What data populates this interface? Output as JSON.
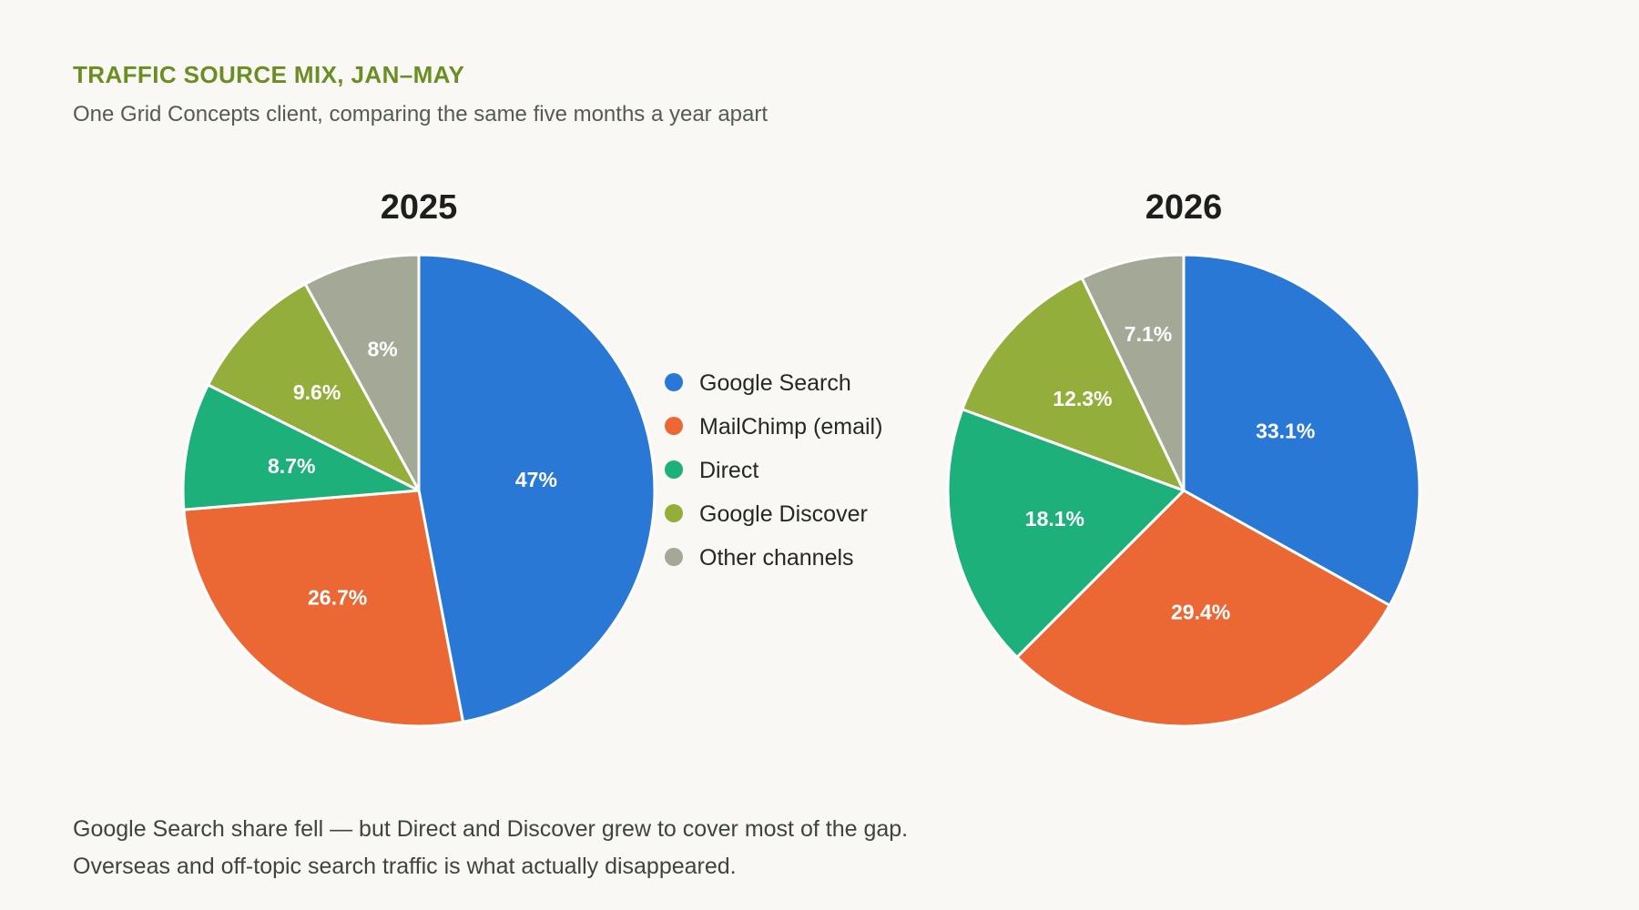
{
  "header": {
    "kicker": "TRAFFIC SOURCE MIX, JAN–MAY",
    "subtitle": "One Grid Concepts client, comparing the same five months a year apart"
  },
  "footnote": "Google Search share fell — but Direct and Discover grew to cover most of the gap. Overseas and off-topic search traffic is what actually disappeared.",
  "chart_data": [
    {
      "type": "pie",
      "title": "2025",
      "categories": [
        "Google Search",
        "MailChimp (email)",
        "Direct",
        "Google Discover",
        "Other channels"
      ],
      "values": [
        47,
        26.7,
        8.7,
        9.6,
        8
      ],
      "labels": [
        "47%",
        "26.7%",
        "8.7%",
        "9.6%",
        "8%"
      ],
      "colors": [
        "#2a78d6",
        "#eb6834",
        "#1db07b",
        "#93ae3a",
        "#a4a896"
      ],
      "legend": "between charts"
    },
    {
      "type": "pie",
      "title": "2026",
      "categories": [
        "Google Search",
        "MailChimp (email)",
        "Direct",
        "Google Discover",
        "Other channels"
      ],
      "values": [
        33.1,
        29.4,
        18.1,
        12.3,
        7.1
      ],
      "labels": [
        "33.1%",
        "29.4%",
        "18.1%",
        "12.3%",
        "7.1%"
      ],
      "colors": [
        "#2a78d6",
        "#eb6834",
        "#1db07b",
        "#93ae3a",
        "#a4a896"
      ]
    }
  ]
}
